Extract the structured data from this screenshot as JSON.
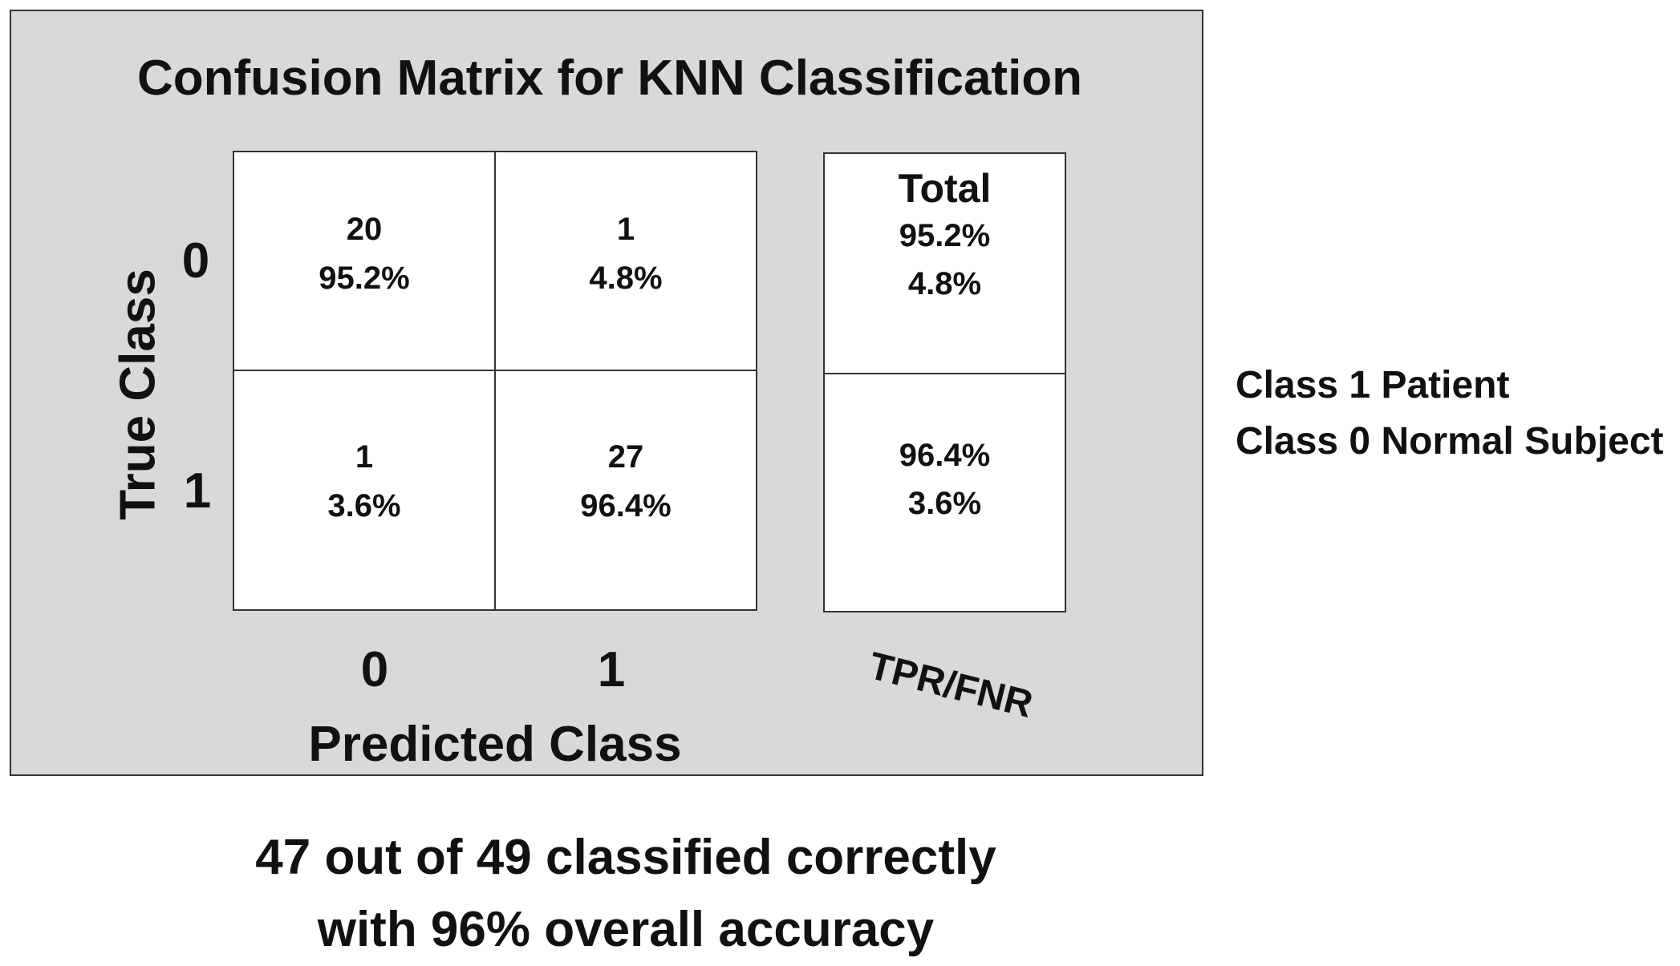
{
  "chart_data": {
    "type": "table",
    "title": "Confusion Matrix for KNN Classification",
    "xlabel": "Predicted Class",
    "ylabel": "True Class",
    "categories": [
      "0",
      "1"
    ],
    "matrix": [
      [
        {
          "count": "20",
          "percent": "95.2%"
        },
        {
          "count": "1",
          "percent": "4.8%"
        }
      ],
      [
        {
          "count": "1",
          "percent": "3.6%"
        },
        {
          "count": "27",
          "percent": "96.4%"
        }
      ]
    ],
    "totals": {
      "header": "Total",
      "rows": [
        {
          "tpr": "95.2%",
          "fnr": "4.8%"
        },
        {
          "tpr": "96.4%",
          "fnr": "3.6%"
        }
      ],
      "label": "TPR/FNR"
    },
    "legend": [
      "Class 1 Patient",
      "Class 0 Normal Subject"
    ],
    "summary": [
      "47 out of 49 classified correctly",
      "with 96% overall accuracy"
    ]
  }
}
